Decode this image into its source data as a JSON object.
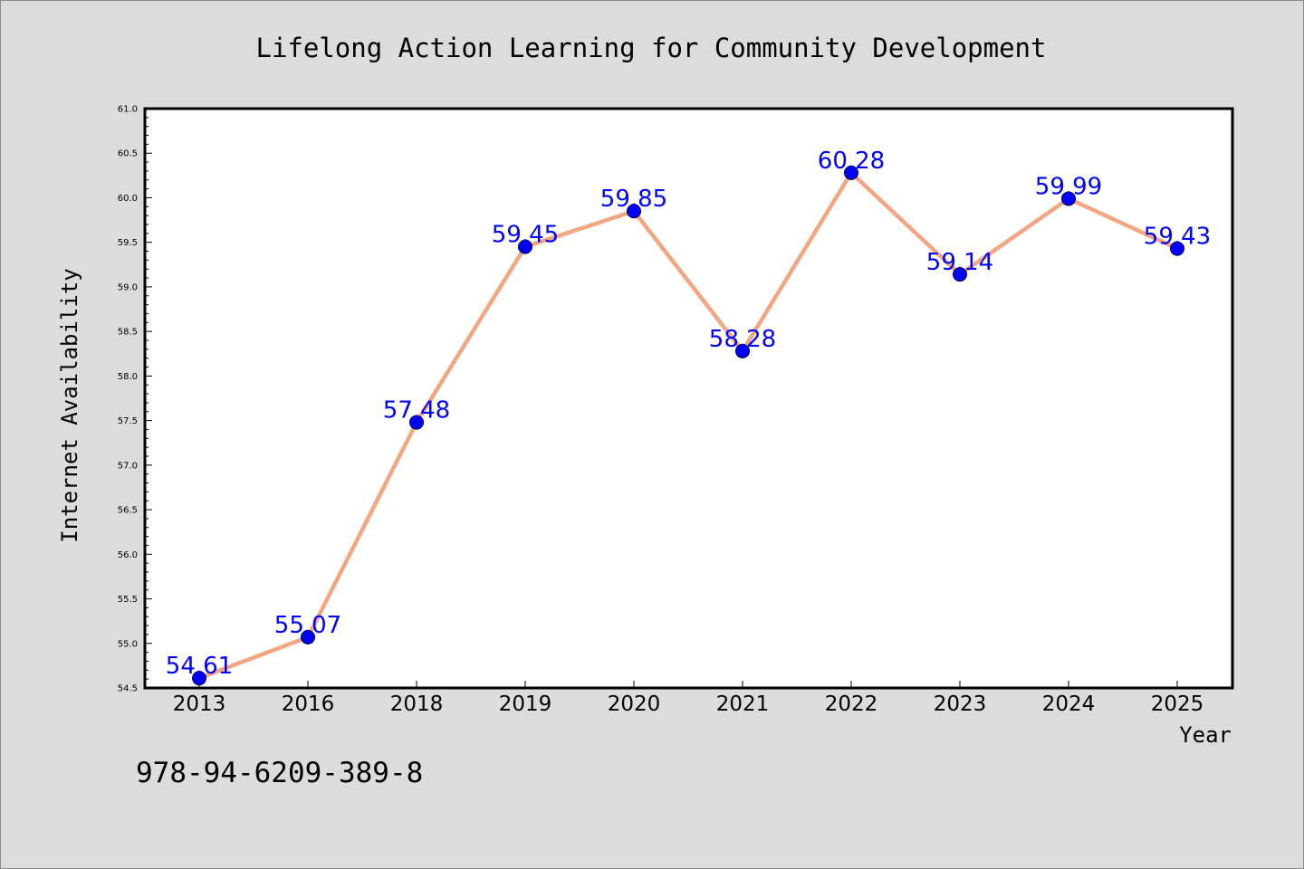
{
  "chart_data": {
    "type": "line",
    "title": "Lifelong Action Learning for Community Development",
    "xlabel": "Year",
    "ylabel": "Internet Availability",
    "categories": [
      "2013",
      "2016",
      "2018",
      "2019",
      "2020",
      "2021",
      "2022",
      "2023",
      "2024",
      "2025"
    ],
    "series": [
      {
        "values": [
          54.61,
          55.07,
          57.48,
          59.45,
          59.85,
          58.28,
          60.28,
          59.14,
          59.99,
          59.43
        ],
        "labels": [
          "54.61",
          "55.07",
          "57.48",
          "59.45",
          "59.85",
          "58.28",
          "60.28",
          "59.14",
          "59.99",
          "59.43"
        ],
        "line_color": "#f4a582",
        "marker_color": "#0000ff",
        "label_color": "#0000ff"
      }
    ],
    "ylim": [
      54.5,
      61.0
    ],
    "yticks": [
      "54.5",
      "55.0",
      "55.5",
      "56.0",
      "56.5",
      "57.0",
      "57.5",
      "58.0",
      "58.5",
      "59.0",
      "59.5",
      "60.0",
      "60.5",
      "61.0"
    ],
    "grid": false,
    "legend": "none"
  },
  "footer": {
    "isbn": "978-94-6209-389-8"
  },
  "colors": {
    "background": "#dcdcdc",
    "plot_background": "#ffffff"
  }
}
